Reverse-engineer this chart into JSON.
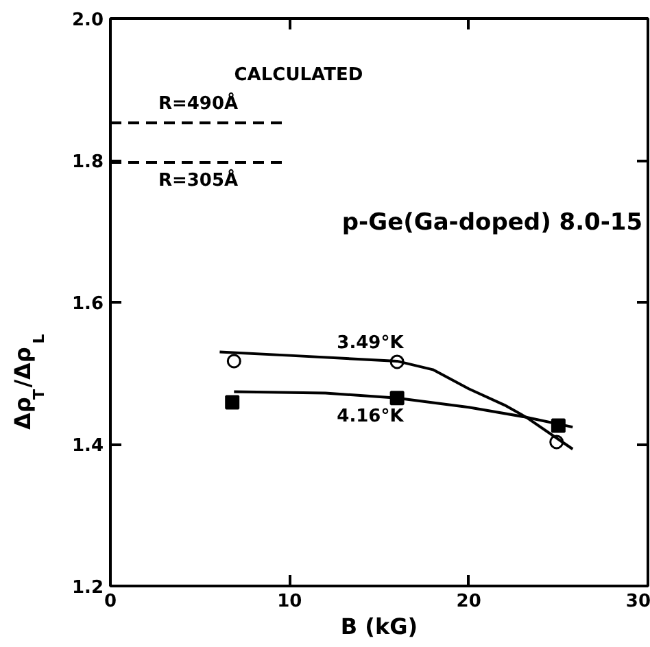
{
  "chart_data": {
    "type": "scatter",
    "xlabel": "B (kG)",
    "ylabel": "Δρ$_{T}$/Δρ$_{L}$",
    "xlim": [
      0,
      30
    ],
    "ylim": [
      1.2,
      2.0
    ],
    "xticks": [
      0,
      10,
      20,
      30
    ],
    "yticks": [
      1.2,
      1.4,
      1.6,
      1.8,
      {
        "value": 2,
        "label": "2.0"
      }
    ],
    "grid": false,
    "legend": false,
    "annotations": [
      "CALCULATED",
      "p-Ge(Ga-doped) 8.0-15"
    ],
    "series": [
      {
        "name": "3.49°K",
        "marker": "circle",
        "color": "#000000",
        "x": [
          6.9,
          16.0,
          24.9
        ],
        "values": [
          1.517,
          1.516,
          1.403
        ]
      },
      {
        "name": "4.16°K",
        "marker": "square",
        "color": "#000000",
        "x": [
          6.8,
          16.0,
          25.0
        ],
        "values": [
          1.459,
          1.465,
          1.426
        ]
      },
      {
        "type": "line",
        "line_style": "solid",
        "color": "#000000",
        "x": [
          6.1,
          10,
          16.0,
          18,
          20,
          22,
          23.2,
          25.8
        ],
        "values": [
          1.53,
          1.525,
          1.517,
          1.505,
          1.478,
          1.455,
          1.438,
          1.393
        ]
      },
      {
        "type": "line",
        "line_style": "solid",
        "color": "#000000",
        "x": [
          6.9,
          12,
          16.0,
          20,
          23.2,
          25.8
        ],
        "values": [
          1.474,
          1.472,
          1.465,
          1.452,
          1.438,
          1.424
        ]
      },
      {
        "name": "R=490Å",
        "type": "line",
        "line_style": "dashed",
        "color": "#000000",
        "x": [
          0,
          9.8
        ],
        "values": [
          1.853,
          1.853
        ]
      },
      {
        "name": "R=305Å",
        "type": "line",
        "line_style": "dashed",
        "color": "#000000",
        "x": [
          0,
          9.8
        ],
        "values": [
          1.797,
          1.797
        ]
      }
    ]
  }
}
